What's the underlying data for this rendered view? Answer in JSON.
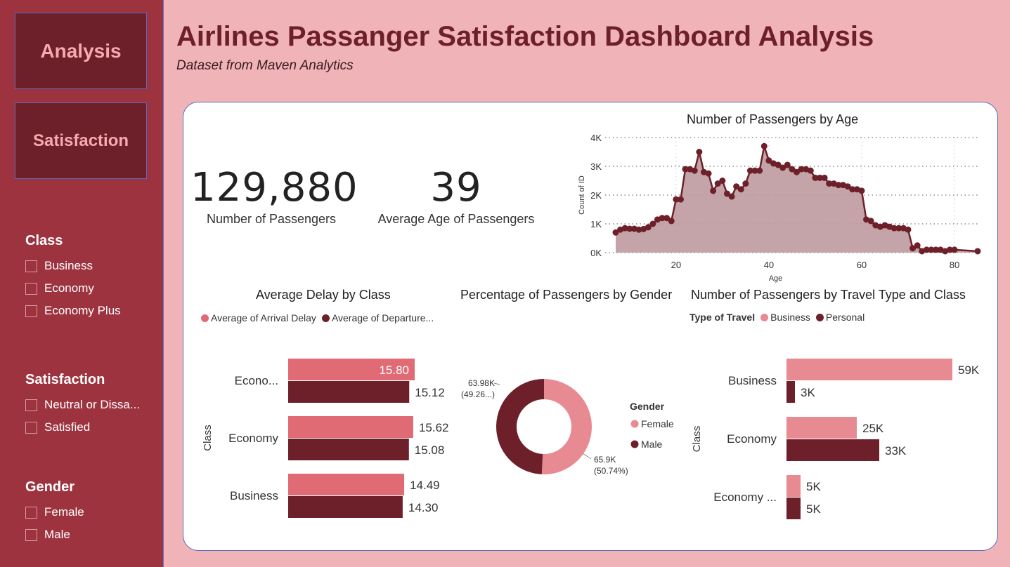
{
  "nav": {
    "analysis": "Analysis",
    "satisfaction": "Satisfaction"
  },
  "header": {
    "title": "Airlines Passanger Satisfaction Dashboard Analysis",
    "subtitle": "Dataset from Maven Analytics"
  },
  "slicers": {
    "class": {
      "title": "Class",
      "items": [
        "Business",
        "Economy",
        "Economy Plus"
      ]
    },
    "satisfaction": {
      "title": "Satisfaction",
      "items": [
        "Neutral or Dissa...",
        "Satisfied"
      ]
    },
    "gender": {
      "title": "Gender",
      "items": [
        "Female",
        "Male"
      ]
    }
  },
  "kpis": {
    "passengers": {
      "value": "129,880",
      "label": "Number of Passengers"
    },
    "avg_age": {
      "value": "39",
      "label": "Average Age of Passengers"
    }
  },
  "colors": {
    "dark": "#6D2029",
    "light": "#E06B74",
    "pink": "#E88A92",
    "area": "#BE9A9E"
  },
  "chart_data": [
    {
      "id": "age",
      "type": "area",
      "title": "Number of Passengers by Age",
      "xlabel": "Age",
      "ylabel": "Count of ID",
      "xlim": [
        7,
        85
      ],
      "ylim": [
        0,
        4000
      ],
      "yticks": [
        "0K",
        "1K",
        "2K",
        "3K",
        "4K"
      ],
      "xticks": [
        "20",
        "40",
        "60",
        "80"
      ],
      "x": [
        7,
        8,
        9,
        10,
        11,
        12,
        13,
        14,
        15,
        16,
        17,
        18,
        19,
        20,
        21,
        22,
        23,
        24,
        25,
        26,
        27,
        28,
        29,
        30,
        31,
        32,
        33,
        34,
        35,
        36,
        37,
        38,
        39,
        40,
        41,
        42,
        43,
        44,
        45,
        46,
        47,
        48,
        49,
        50,
        51,
        52,
        53,
        54,
        55,
        56,
        57,
        58,
        59,
        60,
        61,
        62,
        63,
        64,
        65,
        66,
        67,
        68,
        69,
        70,
        71,
        72,
        73,
        74,
        75,
        76,
        77,
        78,
        79,
        80,
        85
      ],
      "y": [
        700,
        800,
        850,
        830,
        830,
        800,
        820,
        880,
        1000,
        1150,
        1200,
        1200,
        1100,
        1850,
        1850,
        2900,
        2900,
        2850,
        3500,
        2800,
        2750,
        2150,
        2400,
        2500,
        2050,
        1950,
        2300,
        2200,
        2400,
        2850,
        2850,
        2850,
        3700,
        3200,
        3100,
        3050,
        2950,
        3050,
        2900,
        2800,
        2900,
        2900,
        2850,
        2600,
        2600,
        2600,
        2400,
        2400,
        2350,
        2350,
        2300,
        2200,
        2200,
        2150,
        1150,
        1100,
        950,
        900,
        950,
        900,
        850,
        850,
        850,
        800,
        150,
        250,
        50,
        100,
        100,
        100,
        100,
        50,
        100,
        100,
        50
      ]
    },
    {
      "id": "delay",
      "type": "bar",
      "title": "Average Delay by Class",
      "ylabel": "Class",
      "categories": [
        "Econo...",
        "Economy",
        "Business"
      ],
      "series": [
        {
          "name": "Average of Arrival Delay",
          "values": [
            15.8,
            15.62,
            14.49
          ],
          "labels": [
            "15.80",
            "15.62",
            "14.49"
          ]
        },
        {
          "name": "Average of Departure...",
          "values": [
            15.12,
            15.08,
            14.3
          ],
          "labels": [
            "15.12",
            "15.08",
            "14.30"
          ]
        }
      ]
    },
    {
      "id": "gender",
      "type": "pie",
      "title": "Percentage of Passengers by Gender",
      "legend_title": "Gender",
      "labels": [
        "Female",
        "Male"
      ],
      "values": [
        65.9,
        63.98
      ],
      "value_labels": [
        "65.9K",
        "63.98K"
      ],
      "pct_labels": [
        "(50.74%)",
        "(49.26...)"
      ]
    },
    {
      "id": "travel",
      "type": "bar",
      "title": "Number of Passengers by Travel Type and Class",
      "legend_title": "Type of Travel",
      "ylabel": "Class",
      "categories": [
        "Business",
        "Economy",
        "Economy ..."
      ],
      "series": [
        {
          "name": "Business",
          "values": [
            59,
            25,
            5
          ],
          "labels": [
            "59K",
            "25K",
            "5K"
          ]
        },
        {
          "name": "Personal",
          "values": [
            3,
            33,
            5
          ],
          "labels": [
            "3K",
            "33K",
            "5K"
          ]
        }
      ]
    }
  ]
}
